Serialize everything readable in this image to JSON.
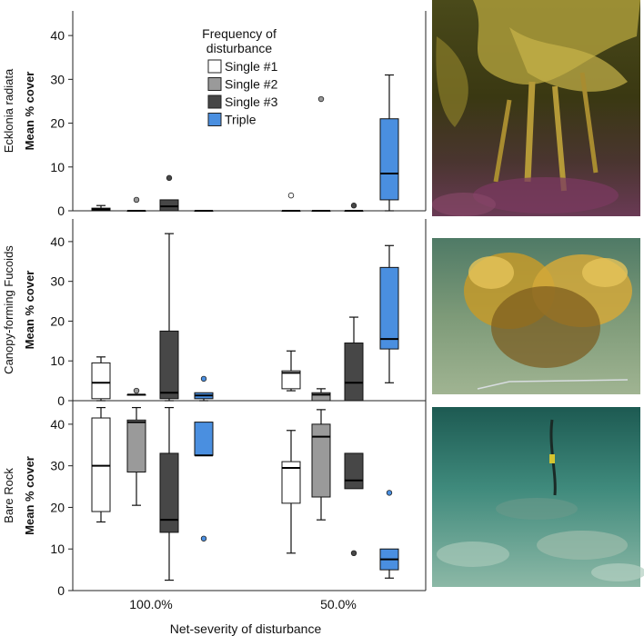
{
  "chart_data": {
    "type": "boxplot",
    "xlabel": "Net-severity of disturbance",
    "categories": [
      "100.0%",
      "50.0%"
    ],
    "legend": {
      "title": [
        "Frequency of",
        "disturbance"
      ],
      "placement": "top",
      "entries": [
        {
          "name": "Single #1",
          "color": "#ffffff"
        },
        {
          "name": "Single #2",
          "color": "#9a9a9a"
        },
        {
          "name": "Single #3",
          "color": "#474747"
        },
        {
          "name": "Triple",
          "color": "#4a8fe0"
        }
      ]
    },
    "ylim": [
      0,
      45
    ],
    "yticks": [
      0,
      10,
      20,
      30,
      40
    ],
    "panels": [
      {
        "label": "Ecklonia radiata",
        "ylabel": "Mean % cover",
        "groups": [
          [
            {
              "whisker_low": 0,
              "q1": 0,
              "median": 0.3,
              "q3": 0.6,
              "whisker_high": 1.2,
              "outliers": []
            },
            {
              "whisker_low": 0,
              "q1": 0,
              "median": 0,
              "q3": 0,
              "whisker_high": 0,
              "outliers": [
                2.5
              ]
            },
            {
              "whisker_low": 0,
              "q1": 0,
              "median": 1,
              "q3": 2.5,
              "whisker_high": 2.5,
              "outliers": [
                7.5
              ]
            },
            {
              "whisker_low": 0,
              "q1": 0,
              "median": 0,
              "q3": 0,
              "whisker_high": 0,
              "outliers": []
            }
          ],
          [
            {
              "whisker_low": 0,
              "q1": 0,
              "median": 0,
              "q3": 0,
              "whisker_high": 0,
              "outliers": [
                3.5
              ]
            },
            {
              "whisker_low": 0,
              "q1": 0,
              "median": 0,
              "q3": 0,
              "whisker_high": 0,
              "outliers": [
                25.5
              ]
            },
            {
              "whisker_low": 0,
              "q1": 0,
              "median": 0,
              "q3": 0,
              "whisker_high": 0,
              "outliers": [
                1.2
              ]
            },
            {
              "whisker_low": 0,
              "q1": 2.5,
              "median": 8.5,
              "q3": 21,
              "whisker_high": 31,
              "outliers": []
            }
          ]
        ]
      },
      {
        "label": "Canopy-forming Fucoids",
        "ylabel": "Mean % cover",
        "groups": [
          [
            {
              "whisker_low": 0,
              "q1": 0.5,
              "median": 4.5,
              "q3": 9.5,
              "whisker_high": 11,
              "outliers": []
            },
            {
              "whisker_low": 1.5,
              "q1": 1.5,
              "median": 1.5,
              "q3": 1.5,
              "whisker_high": 1.5,
              "outliers": [
                2.5
              ]
            },
            {
              "whisker_low": 0,
              "q1": 0.5,
              "median": 2,
              "q3": 17.5,
              "whisker_high": 42,
              "outliers": []
            },
            {
              "whisker_low": 0,
              "q1": 0.5,
              "median": 1.3,
              "q3": 2,
              "whisker_high": 2,
              "outliers": [
                5.5
              ]
            }
          ],
          [
            {
              "whisker_low": 2.5,
              "q1": 3,
              "median": 7,
              "q3": 7.5,
              "whisker_high": 12.5,
              "outliers": []
            },
            {
              "whisker_low": 0,
              "q1": 0,
              "median": 1.5,
              "q3": 2,
              "whisker_high": 3,
              "outliers": []
            },
            {
              "whisker_low": 0,
              "q1": 0,
              "median": 4.5,
              "q3": 14.5,
              "whisker_high": 21,
              "outliers": []
            },
            {
              "whisker_low": 4.5,
              "q1": 13,
              "median": 15.5,
              "q3": 33.5,
              "whisker_high": 39,
              "outliers": []
            }
          ]
        ]
      },
      {
        "label": "Bare Rock",
        "ylabel": "Mean % cover",
        "groups": [
          [
            {
              "whisker_low": 16.5,
              "q1": 19,
              "median": 30,
              "q3": 41.5,
              "whisker_high": 44,
              "outliers": []
            },
            {
              "whisker_low": 20.5,
              "q1": 28.5,
              "median": 40.5,
              "q3": 41,
              "whisker_high": 44,
              "outliers": []
            },
            {
              "whisker_low": 2.5,
              "q1": 14,
              "median": 17,
              "q3": 33,
              "whisker_high": 44,
              "outliers": []
            },
            {
              "whisker_low": 32.5,
              "q1": 32.5,
              "median": 32.5,
              "q3": 40.5,
              "whisker_high": 40.5,
              "outliers": [
                12.5
              ]
            }
          ],
          [
            {
              "whisker_low": 9,
              "q1": 21,
              "median": 29.5,
              "q3": 31,
              "whisker_high": 38.5,
              "outliers": []
            },
            {
              "whisker_low": 17,
              "q1": 22.5,
              "median": 37,
              "q3": 40,
              "whisker_high": 43.5,
              "outliers": []
            },
            {
              "whisker_low": 24.5,
              "q1": 24.5,
              "median": 26.5,
              "q3": 33,
              "whisker_high": 33,
              "outliers": [
                9
              ]
            },
            {
              "whisker_low": 3,
              "q1": 5,
              "median": 7.5,
              "q3": 10,
              "whisker_high": 10,
              "outliers": [
                23.5
              ]
            }
          ]
        ]
      }
    ],
    "photos": [
      {
        "subject": "kelp",
        "colors": [
          "#2c2a12",
          "#7a7020",
          "#c7b34a",
          "#6a3a55"
        ]
      },
      {
        "subject": "fucoid-canopy",
        "colors": [
          "#3e6a56",
          "#8fa67f",
          "#c49a2a",
          "#e6c45a"
        ]
      },
      {
        "subject": "bare-rock",
        "colors": [
          "#1f5a55",
          "#3d8a7d",
          "#7fae9c",
          "#a7c7b8"
        ]
      }
    ]
  }
}
